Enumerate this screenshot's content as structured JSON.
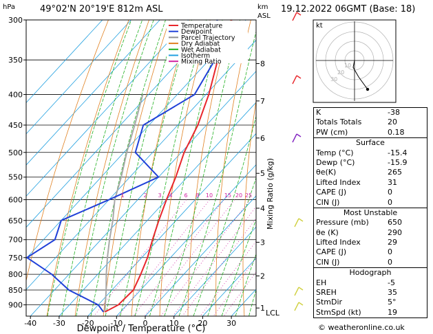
{
  "header": {
    "location": "49°02'N  20°19'E  812m  ASL",
    "datetime": "19.12.2022 06GMT (Base: 18)"
  },
  "axes": {
    "pressure_unit": "hPa",
    "height_unit_line1": "km",
    "height_unit_line2": "ASL",
    "xlabel": "Dewpoint / Temperature (°C)",
    "mixing_label": "Mixing Ratio (g/kg)",
    "lcl_label": "LCL"
  },
  "legend": [
    {
      "label": "Temperature",
      "color": "#e8262b"
    },
    {
      "label": "Dewpoint",
      "color": "#2040d8"
    },
    {
      "label": "Parcel Trajectory",
      "color": "#909090"
    },
    {
      "label": "Dry Adiabat",
      "color": "#e08020"
    },
    {
      "label": "Wet Adiabat",
      "color": "#20b020"
    },
    {
      "label": "Isotherm",
      "color": "#20a0e0"
    },
    {
      "label": "Mixing Ratio",
      "color": "#d020a0"
    }
  ],
  "chart_data": {
    "type": "line",
    "pressure_levels": [
      300,
      350,
      400,
      450,
      500,
      550,
      600,
      650,
      700,
      750,
      800,
      850,
      900
    ],
    "temperature_ticks": [
      -40,
      -30,
      -20,
      -10,
      0,
      10,
      20,
      30
    ],
    "mixing_ratio_labels": [
      "1",
      "2",
      "3",
      "4",
      "6",
      "8",
      "10",
      "15",
      "20",
      "25"
    ],
    "height_km_labels": [
      {
        "km": "1",
        "p": 911
      },
      {
        "km": "2",
        "p": 805
      },
      {
        "km": "3",
        "p": 707
      },
      {
        "km": "4",
        "p": 620
      },
      {
        "km": "5",
        "p": 542
      },
      {
        "km": "6",
        "p": 473
      },
      {
        "km": "7",
        "p": 410
      },
      {
        "km": "8",
        "p": 355
      }
    ],
    "series": [
      {
        "name": "Temperature",
        "points": [
          [
            925,
            -15.4
          ],
          [
            900,
            -13
          ],
          [
            850,
            -12.5
          ],
          [
            800,
            -15
          ],
          [
            750,
            -18
          ],
          [
            700,
            -22
          ],
          [
            650,
            -26
          ],
          [
            600,
            -30
          ],
          [
            550,
            -34
          ],
          [
            500,
            -39
          ],
          [
            450,
            -43
          ],
          [
            400,
            -49
          ],
          [
            350,
            -57
          ],
          [
            300,
            -65
          ]
        ]
      },
      {
        "name": "Dewpoint",
        "points": [
          [
            925,
            -15.9
          ],
          [
            900,
            -20
          ],
          [
            850,
            -35
          ],
          [
            800,
            -46
          ],
          [
            750,
            -60
          ],
          [
            700,
            -56
          ],
          [
            650,
            -60
          ],
          [
            600,
            -50
          ],
          [
            550,
            -40
          ],
          [
            500,
            -56
          ],
          [
            450,
            -62
          ],
          [
            400,
            -54
          ],
          [
            350,
            -58
          ],
          [
            300,
            -70
          ]
        ]
      }
    ],
    "hodograph": {
      "rings_kt": [
        10,
        20,
        30,
        40
      ],
      "ring_labels": [
        "10",
        "20",
        "30"
      ]
    }
  },
  "indices": {
    "k": {
      "label": "K",
      "value": "-38"
    },
    "tt": {
      "label": "Totals Totals",
      "value": "20"
    },
    "pw": {
      "label": "PW (cm)",
      "value": "0.18"
    }
  },
  "surface": {
    "title": "Surface",
    "rows": [
      {
        "label": "Temp (°C)",
        "value": "-15.4"
      },
      {
        "label": "Dewp (°C)",
        "value": "-15.9"
      },
      {
        "label": "θe(K)",
        "value": "265"
      },
      {
        "label": "Lifted Index",
        "value": "31"
      },
      {
        "label": "CAPE (J)",
        "value": "0"
      },
      {
        "label": "CIN (J)",
        "value": "0"
      }
    ]
  },
  "unstable": {
    "title": "Most Unstable",
    "rows": [
      {
        "label": "Pressure (mb)",
        "value": "650"
      },
      {
        "label": "θe (K)",
        "value": "290"
      },
      {
        "label": "Lifted Index",
        "value": "29"
      },
      {
        "label": "CAPE (J)",
        "value": "0"
      },
      {
        "label": "CIN (J)",
        "value": "0"
      }
    ]
  },
  "hodo_params": {
    "title": "Hodograph",
    "rows": [
      {
        "label": "EH",
        "value": "-5"
      },
      {
        "label": "SREH",
        "value": "35"
      },
      {
        "label": "StmDir",
        "value": "5°"
      },
      {
        "label": "StmSpd (kt)",
        "value": "19"
      }
    ]
  },
  "hodograph_label": "kt",
  "copyright": "© weatheronline.co.uk"
}
